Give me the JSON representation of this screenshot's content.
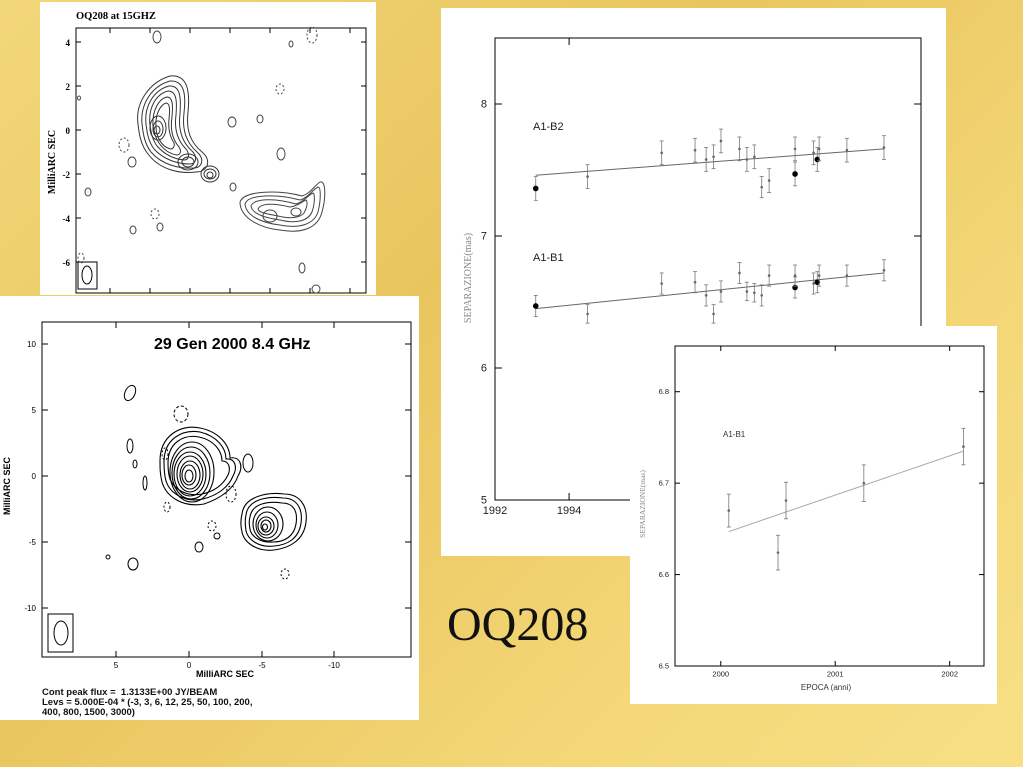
{
  "slide_title": "OQ208",
  "charts": [
    {
      "id": "map-15ghz",
      "type": "contour",
      "title": "OQ208 at 15GHZ",
      "ylabel": "MilliARC SEC",
      "yticks": [
        "4",
        "2",
        "0",
        "-2",
        "-4",
        "-6"
      ]
    },
    {
      "id": "map-8ghz",
      "type": "contour",
      "title": "29 Gen 2000  8.4 GHz",
      "xlabel": "MilliARC SEC",
      "ylabel": "MilliARC SEC",
      "xticks": [
        "5",
        "0",
        "-5",
        "-10"
      ],
      "yticks": [
        "10",
        "5",
        "0",
        "-5",
        "-10"
      ],
      "caption_line1": "Cont peak flux =  1.3133E+00 JY/BEAM",
      "caption_line2": "Levs = 5.000E-04 * (-3, 3, 6, 12, 25, 50, 100, 200,",
      "caption_line3": "400, 800, 1500, 3000)"
    }
  ],
  "chart_data": [
    {
      "type": "scatter",
      "ylabel": "SEPARAZIONE(mas)",
      "xlim": [
        1992,
        2003.5
      ],
      "ylim": [
        5,
        8.5
      ],
      "xticks": [
        "1992",
        "1994"
      ],
      "yticks": [
        "5",
        "6",
        "7",
        "8"
      ],
      "series": [
        {
          "name": "A1-B2",
          "fit": [
            [
              1993.1,
              7.46
            ],
            [
              2002.5,
              7.66
            ]
          ],
          "points": [
            {
              "x": 1993.1,
              "y": 7.36,
              "e": 0.09,
              "big": true
            },
            {
              "x": 1994.5,
              "y": 7.45,
              "e": 0.09
            },
            {
              "x": 1996.5,
              "y": 7.63,
              "e": 0.09
            },
            {
              "x": 1997.4,
              "y": 7.65,
              "e": 0.09
            },
            {
              "x": 1997.7,
              "y": 7.58,
              "e": 0.09
            },
            {
              "x": 1997.9,
              "y": 7.6,
              "e": 0.09
            },
            {
              "x": 1998.1,
              "y": 7.72,
              "e": 0.09
            },
            {
              "x": 1998.6,
              "y": 7.66,
              "e": 0.09
            },
            {
              "x": 1998.8,
              "y": 7.58,
              "e": 0.09
            },
            {
              "x": 1999.0,
              "y": 7.6,
              "e": 0.09
            },
            {
              "x": 1999.2,
              "y": 7.37,
              "e": 0.08
            },
            {
              "x": 1999.4,
              "y": 7.42,
              "e": 0.09
            },
            {
              "x": 2000.1,
              "y": 7.47,
              "e": 0.09,
              "big": true
            },
            {
              "x": 2000.1,
              "y": 7.66,
              "e": 0.09
            },
            {
              "x": 2000.6,
              "y": 7.63,
              "e": 0.09
            },
            {
              "x": 2000.7,
              "y": 7.58,
              "e": 0.09,
              "big": true
            },
            {
              "x": 2000.75,
              "y": 7.66,
              "e": 0.09
            },
            {
              "x": 2001.5,
              "y": 7.65,
              "e": 0.09
            },
            {
              "x": 2002.5,
              "y": 7.67,
              "e": 0.09
            }
          ]
        },
        {
          "name": "A1-B1",
          "fit": [
            [
              1993.1,
              6.45
            ],
            [
              2002.5,
              6.72
            ]
          ],
          "points": [
            {
              "x": 1993.1,
              "y": 6.47,
              "e": 0.08,
              "big": true
            },
            {
              "x": 1994.5,
              "y": 6.41,
              "e": 0.07
            },
            {
              "x": 1996.5,
              "y": 6.64,
              "e": 0.08
            },
            {
              "x": 1997.4,
              "y": 6.65,
              "e": 0.08
            },
            {
              "x": 1997.7,
              "y": 6.55,
              "e": 0.08
            },
            {
              "x": 1997.9,
              "y": 6.41,
              "e": 0.07
            },
            {
              "x": 1998.1,
              "y": 6.58,
              "e": 0.08
            },
            {
              "x": 1998.6,
              "y": 6.72,
              "e": 0.08
            },
            {
              "x": 1998.8,
              "y": 6.58,
              "e": 0.07
            },
            {
              "x": 1999.0,
              "y": 6.57,
              "e": 0.07
            },
            {
              "x": 1999.2,
              "y": 6.55,
              "e": 0.08
            },
            {
              "x": 1999.4,
              "y": 6.7,
              "e": 0.08
            },
            {
              "x": 2000.1,
              "y": 6.61,
              "e": 0.08,
              "big": true
            },
            {
              "x": 2000.1,
              "y": 6.7,
              "e": 0.08
            },
            {
              "x": 2000.6,
              "y": 6.64,
              "e": 0.08
            },
            {
              "x": 2000.7,
              "y": 6.65,
              "e": 0.08,
              "big": true
            },
            {
              "x": 2000.75,
              "y": 6.7,
              "e": 0.08
            },
            {
              "x": 2001.5,
              "y": 6.7,
              "e": 0.08
            },
            {
              "x": 2002.5,
              "y": 6.74,
              "e": 0.08
            }
          ]
        }
      ]
    },
    {
      "type": "scatter",
      "xlabel": "EPOCA (anni)",
      "ylabel": "SEPARAZIONE(mas)",
      "xlim": [
        1999.6,
        2002.3
      ],
      "ylim": [
        6.5,
        6.85
      ],
      "xticks": [
        "2000",
        "2001",
        "2002"
      ],
      "yticks": [
        "6.5",
        "6.6",
        "6.7",
        "6.8"
      ],
      "series": [
        {
          "name": "A1-B1",
          "fit": [
            [
              2000.07,
              6.647
            ],
            [
              2002.12,
              6.735
            ]
          ],
          "points": [
            {
              "x": 2000.07,
              "y": 6.67,
              "e": 0.018
            },
            {
              "x": 2000.5,
              "y": 6.624,
              "e": 0.019
            },
            {
              "x": 2000.57,
              "y": 6.681,
              "e": 0.02
            },
            {
              "x": 2001.25,
              "y": 6.7,
              "e": 0.02
            },
            {
              "x": 2002.12,
              "y": 6.74,
              "e": 0.02
            }
          ]
        }
      ]
    }
  ]
}
